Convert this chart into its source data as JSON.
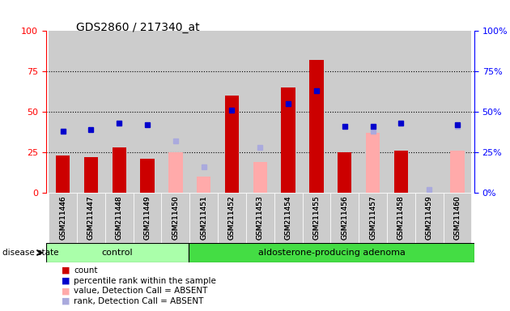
{
  "title": "GDS2860 / 217340_at",
  "samples": [
    "GSM211446",
    "GSM211447",
    "GSM211448",
    "GSM211449",
    "GSM211450",
    "GSM211451",
    "GSM211452",
    "GSM211453",
    "GSM211454",
    "GSM211455",
    "GSM211456",
    "GSM211457",
    "GSM211458",
    "GSM211459",
    "GSM211460"
  ],
  "control_count": 5,
  "disease_group": "aldosterone-producing adenoma",
  "control_group": "control",
  "red_bars": [
    23,
    22,
    28,
    21,
    null,
    null,
    60,
    null,
    65,
    82,
    25,
    null,
    26,
    null,
    null
  ],
  "pink_bars": [
    null,
    null,
    null,
    null,
    25,
    10,
    null,
    19,
    null,
    null,
    null,
    37,
    null,
    null,
    26
  ],
  "blue_squares": [
    38,
    39,
    43,
    42,
    null,
    null,
    51,
    null,
    55,
    63,
    41,
    41,
    43,
    null,
    42
  ],
  "lightblue_squares": [
    null,
    null,
    null,
    null,
    32,
    16,
    null,
    28,
    null,
    null,
    null,
    38,
    null,
    2,
    41
  ],
  "red_color": "#cc0000",
  "pink_color": "#ffaaaa",
  "blue_color": "#0000cc",
  "lightblue_color": "#aaaadd",
  "control_bg": "#aaffaa",
  "adenoma_bg": "#44dd44",
  "gray_tick_bg": "#cccccc",
  "white": "#ffffff",
  "ylim_left": [
    0,
    100
  ],
  "ylim_right": [
    0,
    100
  ],
  "yticks": [
    0,
    25,
    50,
    75,
    100
  ],
  "legend_items": [
    {
      "label": "count",
      "color": "#cc0000"
    },
    {
      "label": "percentile rank within the sample",
      "color": "#0000cc"
    },
    {
      "label": "value, Detection Call = ABSENT",
      "color": "#ffaaaa"
    },
    {
      "label": "rank, Detection Call = ABSENT",
      "color": "#aaaadd"
    }
  ]
}
